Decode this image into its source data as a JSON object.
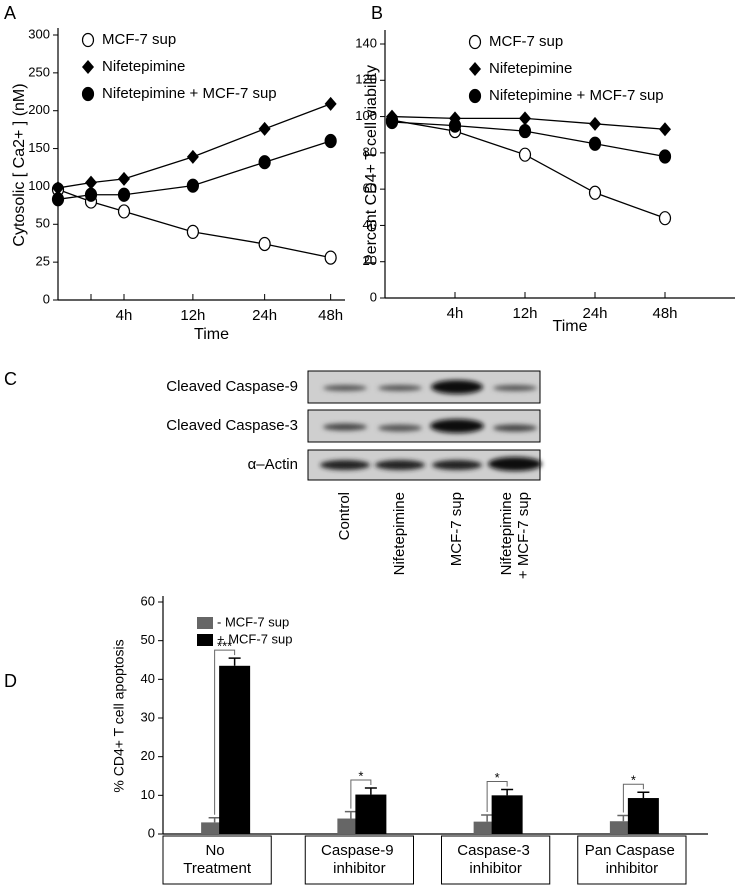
{
  "chart_data": [
    {
      "type": "line",
      "panel": "A",
      "xlabel": "Time",
      "ylabel": "Cytosolic [ Ca2+ ] (nM)",
      "categories": [
        null,
        null,
        "4h",
        "12h",
        "24h",
        "48h"
      ],
      "ylim": [
        0,
        300
      ],
      "yticks": [
        0,
        25,
        50,
        100,
        150,
        200,
        250,
        300
      ],
      "series": [
        {
          "name": "MCF-7 sup",
          "color": "#000000",
          "marker": "circle-open",
          "values": [
            96,
            80,
            67,
            45,
            37,
            28
          ]
        },
        {
          "name": "Nifetepimine",
          "color": "#000000",
          "marker": "diamond",
          "values": [
            98,
            105,
            110,
            139,
            176,
            209
          ]
        },
        {
          "name": "Nifetepimine + MCF-7 sup",
          "color": "#000000",
          "marker": "circle",
          "values": [
            83,
            89,
            89,
            101,
            132,
            160
          ]
        }
      ]
    },
    {
      "type": "line",
      "panel": "B",
      "xlabel": "Time",
      "ylabel": "Percent CD4+ T cell viability",
      "categories": [
        null,
        "4h",
        "12h",
        "24h",
        "48h"
      ],
      "ylim": [
        0,
        140
      ],
      "yticks": [
        0,
        20,
        40,
        60,
        80,
        100,
        120,
        140
      ],
      "series": [
        {
          "name": "MCF-7 sup",
          "color": "#000000",
          "marker": "circle-open",
          "values": [
            98,
            92,
            79,
            58,
            44
          ]
        },
        {
          "name": "Nifetepimine",
          "color": "#000000",
          "marker": "diamond",
          "values": [
            100,
            99,
            99,
            96,
            93
          ]
        },
        {
          "name": "Nifetepimine + MCF-7 sup",
          "color": "#000000",
          "marker": "circle",
          "values": [
            97,
            95,
            92,
            85,
            78
          ]
        }
      ]
    },
    {
      "type": "bar",
      "panel": "D",
      "ylabel": "% CD4+ T cell apoptosis",
      "categories": [
        "No Treatment",
        "Caspase-9 inhibitor",
        "Caspase-3 inhibitor",
        "Pan Caspase inhibitor"
      ],
      "ylim": [
        0,
        60
      ],
      "yticks": [
        0,
        10,
        20,
        30,
        40,
        50,
        60
      ],
      "annotations": [
        "***",
        "*",
        "*",
        "*"
      ],
      "series": [
        {
          "name": "- MCF-7 sup",
          "color": "#666666",
          "values": [
            3,
            4,
            3.2,
            3.3
          ],
          "errors": [
            1.2,
            1.8,
            1.7,
            1.5
          ]
        },
        {
          "name": "+ MCF-7 sup",
          "color": "#000000",
          "values": [
            43.5,
            10.2,
            10.0,
            9.3
          ],
          "errors": [
            2,
            1.7,
            1.5,
            1.5
          ]
        }
      ]
    }
  ],
  "blot": {
    "panel": "C",
    "rows": [
      "Cleaved Caspase-9",
      "Cleaved Caspase-3",
      "α–Actin"
    ],
    "lanes": [
      "Control",
      "Nifetepimine",
      "MCF-7 sup",
      "Nifetepimine + MCF-7 sup"
    ]
  }
}
